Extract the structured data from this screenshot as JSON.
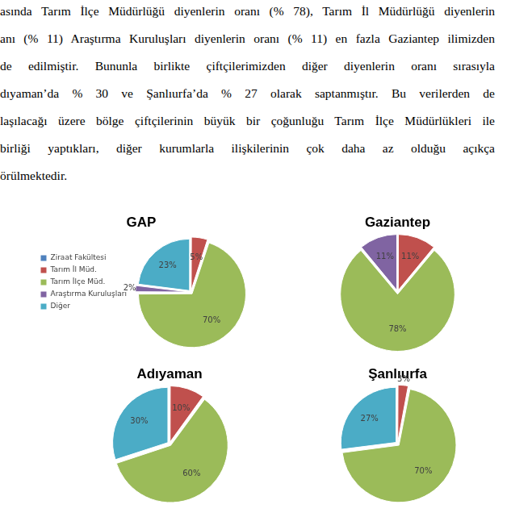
{
  "paragraph": [
    "asında Tarım İlçe Müdürlüğü diyenlerin oranı (% 78), Tarım İl Müdürlüğü diyenlerin",
    "anı (% 11) Araştırma Kuruluşları diyenlerin oranı (% 11) en fazla Gaziantep ilimizden",
    "de edilmiştir. Bununla birlikte çiftçilerimizden diğer diyenlerin oranı sırasıyla",
    "dıyaman’da % 30 ve Şanlıurfa’da % 27 olarak saptanmıştır. Bu verilerden de",
    "laşılacağı üzere bölge çiftçilerinin büyük bir çoğunluğu Tarım İlçe Müdürlükleri ile",
    "birliği yaptıkları, diğer kurumlarla ilişkilerinin çok daha az olduğu açıkça",
    "örülmektedir."
  ],
  "chart_data": [
    {
      "type": "pie",
      "title": "GAP",
      "categories": [
        "Ziraat Fakültesi",
        "Tarım İl Müd.",
        "Tarım İlçe Müd.",
        "Araştırma Kuruluşları",
        "Diğer"
      ],
      "values": [
        0,
        5,
        70,
        2,
        23
      ],
      "value_labels": [
        null,
        "5%",
        "70%",
        "2%",
        "23%"
      ],
      "colors": [
        "#4f81bd",
        "#c0504d",
        "#9bbb59",
        "#8064a2",
        "#4bacc6"
      ],
      "data_labels": true,
      "legend": "left"
    },
    {
      "type": "pie",
      "title": "Gaziantep",
      "categories": [
        "Ziraat Fakültesi",
        "Tarım İl Müd.",
        "Tarım İlçe Müd.",
        "Araştırma Kuruluşları",
        "Diğer"
      ],
      "values": [
        0,
        11,
        78,
        11,
        0
      ],
      "value_labels": [
        null,
        "11%",
        "78%",
        "11%",
        null
      ],
      "colors": [
        "#4f81bd",
        "#c0504d",
        "#9bbb59",
        "#8064a2",
        "#4bacc6"
      ],
      "data_labels": true
    },
    {
      "type": "pie",
      "title": "Adıyaman",
      "categories": [
        "Ziraat Fakültesi",
        "Tarım İl Müd.",
        "Tarım İlçe Müd.",
        "Araştırma Kuruluşları",
        "Diğer"
      ],
      "values": [
        0,
        10,
        60,
        0,
        30
      ],
      "value_labels": [
        null,
        "10%",
        "60%",
        null,
        "30%"
      ],
      "colors": [
        "#4f81bd",
        "#c0504d",
        "#9bbb59",
        "#8064a2",
        "#4bacc6"
      ],
      "data_labels": true
    },
    {
      "type": "pie",
      "title": "Şanlıurfa",
      "categories": [
        "Ziraat Fakültesi",
        "Tarım İl Müd.",
        "Tarım İlçe Müd.",
        "Araştırma Kuruluşları",
        "Diğer"
      ],
      "values": [
        0,
        3,
        70,
        0,
        27
      ],
      "value_labels": [
        null,
        "3%",
        "70%",
        null,
        "27%"
      ],
      "colors": [
        "#4f81bd",
        "#c0504d",
        "#9bbb59",
        "#8064a2",
        "#4bacc6"
      ],
      "data_labels": true
    }
  ]
}
